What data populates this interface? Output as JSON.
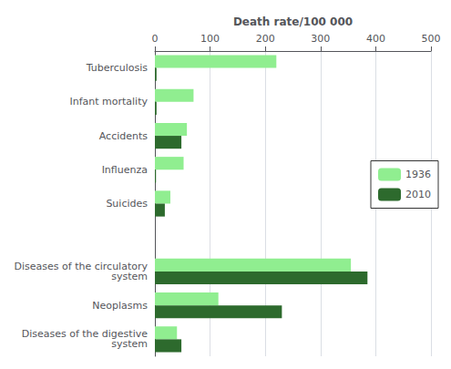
{
  "chart_data": {
    "type": "bar",
    "orientation": "horizontal",
    "xlabel": "Death rate/100 000",
    "categories": [
      "Tuberculosis",
      "Infant mortality",
      "Accidents",
      "Influenza",
      "Suicides",
      null,
      "Diseases of the circulatory\nsystem",
      "Neoplasms",
      "Diseases of the digestive\nsystem"
    ],
    "series": [
      {
        "name": "1936",
        "color": "#90EE90",
        "values": [
          220,
          70,
          58,
          52,
          28,
          0,
          355,
          115,
          40
        ]
      },
      {
        "name": "2010",
        "color": "#2D6A2D",
        "values": [
          3,
          3,
          48,
          2,
          18,
          0,
          385,
          230,
          48
        ]
      }
    ],
    "xlim": [
      0,
      500
    ],
    "xticks": [
      0,
      100,
      200,
      300,
      400,
      500
    ],
    "grid": true,
    "legend": "right"
  }
}
